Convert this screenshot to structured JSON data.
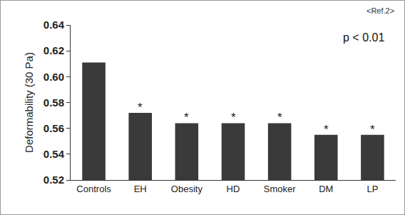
{
  "chart_data": {
    "type": "bar",
    "categories": [
      "Controls",
      "EH",
      "Obesity",
      "HD",
      "Smoker",
      "DM",
      "LP"
    ],
    "values": [
      0.611,
      0.572,
      0.564,
      0.564,
      0.564,
      0.555,
      0.555
    ],
    "color": "#3a3a3a",
    "y_label": "Deformability (30 Pa)",
    "ylim": [
      0.52,
      0.64
    ],
    "yticks": [
      0.52,
      0.54,
      0.56,
      0.58,
      {
        "value": 0.6,
        "label": "0.60"
      },
      0.62,
      0.64
    ],
    "grid": false,
    "annotations": [
      {
        "text": "p < 0.01"
      },
      {
        "text": "<Ref.2>"
      },
      {
        "text": "*",
        "x": "EH"
      },
      {
        "text": "*",
        "x": "Obesity"
      },
      {
        "text": "*",
        "x": "HD"
      },
      {
        "text": "*",
        "x": "Smoker"
      },
      {
        "text": "*",
        "x": "DM"
      },
      {
        "text": "*",
        "x": "LP"
      }
    ]
  }
}
